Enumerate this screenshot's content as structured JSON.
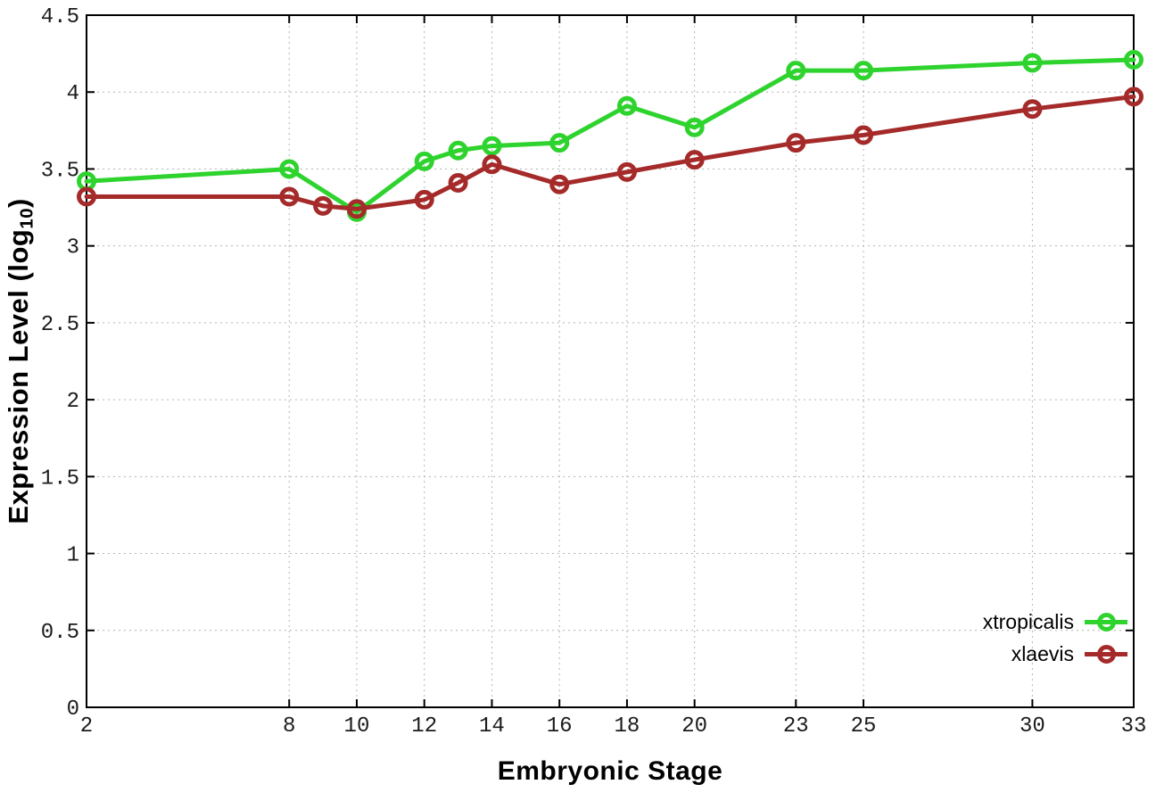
{
  "figure": {
    "background": "#ffffff",
    "border_color": "#000000",
    "grid_color": "#b4b4b4",
    "tick_label_color": "#1b1b1b"
  },
  "axes": {
    "x_title": "Embryonic Stage",
    "y_title_prefix": "Expression Level (log",
    "y_title_sub": "10",
    "y_title_suffix": ")"
  },
  "chart_data": {
    "type": "line",
    "title": "",
    "xlabel": "Embryonic Stage",
    "ylabel": "Expression Level (log10)",
    "xlim": [
      2,
      33
    ],
    "ylim": [
      0,
      4.5
    ],
    "grid": true,
    "grid_style": "dotted",
    "legend_position": "bottom-right",
    "xticks": {
      "values": [
        2,
        8,
        10,
        12,
        14,
        16,
        18,
        20,
        23,
        25,
        30,
        33
      ],
      "labels": [
        "2",
        "8",
        "10",
        "12",
        "14",
        "16",
        "18",
        "20",
        "23",
        "25",
        "30",
        "33"
      ]
    },
    "yticks": {
      "values": [
        0,
        0.5,
        1,
        1.5,
        2,
        2.5,
        3,
        3.5,
        4,
        4.5
      ],
      "labels": [
        "0",
        "0.5",
        "1",
        "1.5",
        "2",
        "2.5",
        "3",
        "3.5",
        "4",
        "4.5"
      ]
    },
    "series": [
      {
        "name": "xtropicalis",
        "color": "#2ed32e",
        "marker": "open-circle",
        "line_width": 5,
        "x": [
          2,
          8,
          10,
          12,
          13,
          14,
          16,
          18,
          20,
          23,
          25,
          30,
          33
        ],
        "y": [
          3.42,
          3.5,
          3.22,
          3.55,
          3.62,
          3.65,
          3.67,
          3.91,
          3.77,
          4.14,
          4.14,
          4.19,
          4.21
        ]
      },
      {
        "name": "xlaevis",
        "color": "#a52a2a",
        "marker": "open-circle",
        "line_width": 5,
        "x": [
          2,
          8,
          9,
          10,
          12,
          13,
          14,
          16,
          18,
          20,
          23,
          25,
          30,
          33
        ],
        "y": [
          3.32,
          3.32,
          3.26,
          3.24,
          3.3,
          3.41,
          3.53,
          3.4,
          3.48,
          3.56,
          3.67,
          3.72,
          3.89,
          3.97
        ]
      }
    ]
  }
}
